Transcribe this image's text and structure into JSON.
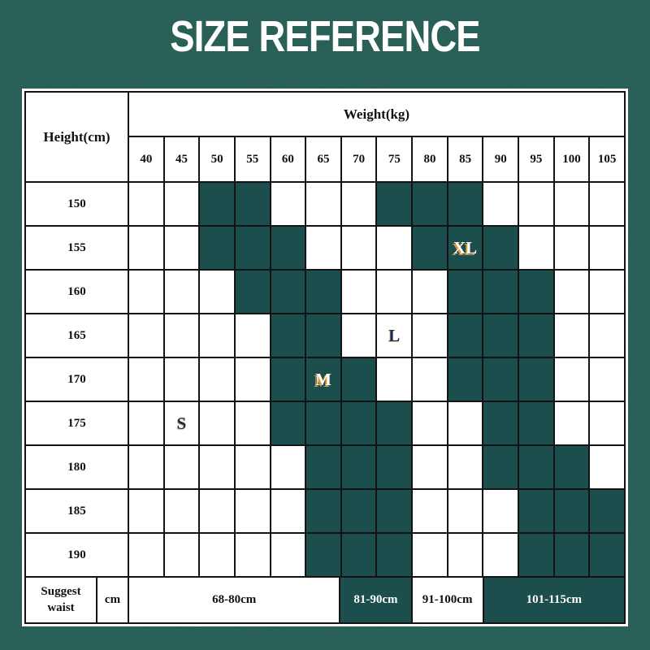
{
  "title": "SIZE REFERENCE",
  "colors": {
    "background": "#1d584f",
    "cell_fill": "#1c4e4d",
    "grid_line": "#131313",
    "table_background": "#ffffff",
    "title_color": "#ffffff",
    "text_color": "#111111",
    "marker_light": "#ffffff",
    "marker_dark": "#1a2a4a",
    "marker_shadow": "#dd9b3d"
  },
  "chart_data": {
    "type": "table",
    "title": "SIZE REFERENCE",
    "col_header": "Weight(kg)",
    "row_header": "Height(cm)",
    "weights_kg": [
      "40",
      "45",
      "50",
      "55",
      "60",
      "65",
      "70",
      "75",
      "80",
      "85",
      "90",
      "95",
      "100",
      "105"
    ],
    "rows": [
      {
        "height": "150",
        "filled": [
          0,
          0,
          1,
          1,
          0,
          0,
          0,
          1,
          1,
          1,
          0,
          0,
          0,
          0
        ],
        "marker": null
      },
      {
        "height": "155",
        "filled": [
          0,
          0,
          1,
          1,
          1,
          0,
          0,
          0,
          1,
          1,
          1,
          0,
          0,
          0
        ],
        "marker": {
          "col": 9,
          "text": "XL",
          "style": "light"
        }
      },
      {
        "height": "160",
        "filled": [
          0,
          0,
          0,
          1,
          1,
          1,
          0,
          0,
          0,
          1,
          1,
          1,
          0,
          0
        ],
        "marker": null
      },
      {
        "height": "165",
        "filled": [
          0,
          0,
          0,
          0,
          1,
          1,
          0,
          0,
          0,
          1,
          1,
          1,
          0,
          0
        ],
        "marker": {
          "col": 7,
          "text": "L",
          "style": "dark"
        }
      },
      {
        "height": "170",
        "filled": [
          0,
          0,
          0,
          0,
          1,
          1,
          1,
          0,
          0,
          1,
          1,
          1,
          0,
          0
        ],
        "marker": {
          "col": 5,
          "text": "M",
          "style": "light"
        }
      },
      {
        "height": "175",
        "filled": [
          0,
          0,
          0,
          0,
          1,
          1,
          1,
          1,
          0,
          0,
          1,
          1,
          0,
          0
        ],
        "marker": {
          "col": 1,
          "text": "S",
          "style": "dark"
        }
      },
      {
        "height": "180",
        "filled": [
          0,
          0,
          0,
          0,
          0,
          1,
          1,
          1,
          0,
          0,
          1,
          1,
          1,
          0
        ],
        "marker": null
      },
      {
        "height": "185",
        "filled": [
          0,
          0,
          0,
          0,
          0,
          1,
          1,
          1,
          0,
          0,
          0,
          1,
          1,
          1
        ],
        "marker": null
      },
      {
        "height": "190",
        "filled": [
          0,
          0,
          0,
          0,
          0,
          1,
          1,
          1,
          0,
          0,
          0,
          1,
          1,
          1
        ],
        "marker": null
      }
    ],
    "footer": {
      "label": "Suggest waist",
      "unit": "cm",
      "segments": [
        {
          "text": "68-80cm",
          "span_cols": 6,
          "filled": false
        },
        {
          "text": "81-90cm",
          "span_cols": 2,
          "filled": true
        },
        {
          "text": "91-100cm",
          "span_cols": 2,
          "filled": false
        },
        {
          "text": "101-115cm",
          "span_cols": 4,
          "filled": true
        }
      ]
    }
  }
}
